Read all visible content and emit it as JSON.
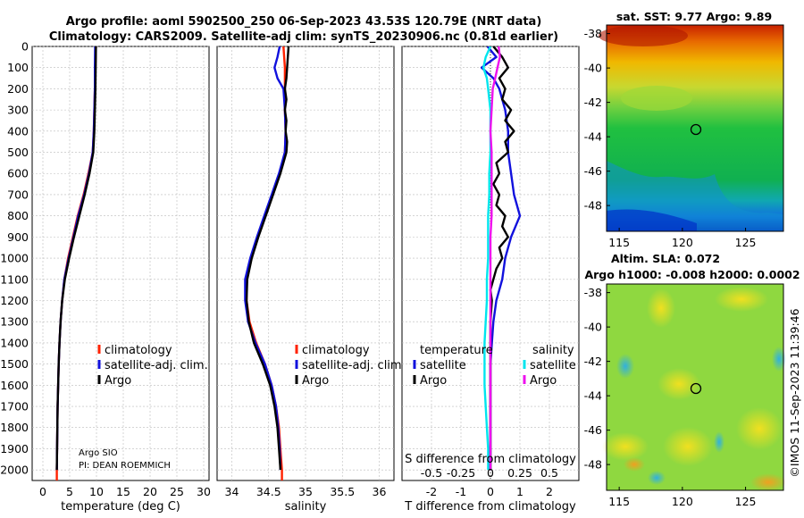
{
  "titles": {
    "line1": "Argo profile: aoml 5902500_250 06-Sep-2023 43.53S 120.79E (NRT data)",
    "line2": "Climatology: CARS2009. Satellite-adj clim: synTS_20230906.nc (0.81d earlier)"
  },
  "credits": {
    "line1": "Argo SIO",
    "line2": "PI: DEAN ROEMMICH"
  },
  "timestamp": "©IMOS 11-Sep-2023 11:39:46",
  "colors": {
    "climatology": "#ff2200",
    "satellite": "#1111dd",
    "argo": "#000000",
    "temp_sat": "#00e5ee",
    "sal_argo": "#ee11ee"
  },
  "chart_data": [
    {
      "id": "temperature",
      "type": "line",
      "xlabel": "temperature (deg C)",
      "ylabel": "",
      "xlim": [
        -2,
        31
      ],
      "ylim": [
        2050,
        0
      ],
      "xticks": [
        0,
        5,
        10,
        15,
        20,
        25,
        30
      ],
      "yticks": [
        0,
        100,
        200,
        300,
        400,
        500,
        600,
        700,
        800,
        900,
        1000,
        1100,
        1200,
        1300,
        1400,
        1500,
        1600,
        1700,
        1800,
        1900,
        2000
      ],
      "legend": [
        "climatology",
        "satellite-adj. clim.",
        "Argo"
      ],
      "series": [
        {
          "name": "climatology",
          "color": "#ff2200",
          "depth": [
            0,
            100,
            200,
            300,
            400,
            500,
            600,
            700,
            800,
            900,
            1000,
            1100,
            1200,
            1300,
            1400,
            1500,
            1600,
            1700,
            1800,
            1900,
            2000,
            2050
          ],
          "values": [
            9.9,
            9.8,
            9.7,
            9.6,
            9.5,
            9.3,
            8.5,
            7.6,
            6.5,
            5.6,
            4.7,
            4.0,
            3.6,
            3.3,
            3.1,
            2.95,
            2.85,
            2.75,
            2.7,
            2.65,
            2.6,
            2.6
          ]
        },
        {
          "name": "satellite-adj. clim.",
          "color": "#1111dd",
          "depth": [
            0,
            100,
            200,
            300,
            400,
            500,
            600,
            700,
            800,
            900,
            1000,
            1100,
            1200,
            1300,
            1400,
            1500,
            1600,
            1700,
            1800,
            1900,
            2000
          ],
          "values": [
            9.75,
            9.7,
            9.7,
            9.6,
            9.5,
            9.3,
            8.6,
            7.7,
            6.6,
            5.7,
            4.8,
            4.0,
            3.6,
            3.3,
            3.1,
            2.95,
            2.85,
            2.75,
            2.7,
            2.65,
            2.6
          ]
        },
        {
          "name": "Argo",
          "color": "#000000",
          "depth": [
            0,
            100,
            200,
            300,
            400,
            500,
            600,
            700,
            800,
            900,
            1000,
            1100,
            1200,
            1300,
            1400,
            1500,
            1600,
            1700,
            1800,
            1900,
            2000
          ],
          "values": [
            9.9,
            9.85,
            9.8,
            9.7,
            9.6,
            9.4,
            8.7,
            7.8,
            6.8,
            5.8,
            4.9,
            4.1,
            3.6,
            3.3,
            3.1,
            2.95,
            2.85,
            2.75,
            2.7,
            2.65,
            2.6
          ]
        }
      ]
    },
    {
      "id": "salinity",
      "type": "line",
      "xlabel": "salinity",
      "xlim": [
        33.8,
        36.2
      ],
      "ylim": [
        2050,
        0
      ],
      "xticks": [
        34,
        34.5,
        35,
        35.5,
        36
      ],
      "legend": [
        "climatology",
        "satellite-adj. clim.",
        "Argo"
      ],
      "series": [
        {
          "name": "climatology",
          "color": "#ff2200",
          "depth": [
            0,
            100,
            200,
            300,
            400,
            500,
            600,
            700,
            800,
            900,
            1000,
            1100,
            1200,
            1300,
            1400,
            1500,
            1600,
            1700,
            1800,
            1900,
            2000,
            2050
          ],
          "values": [
            34.7,
            34.72,
            34.72,
            34.72,
            34.73,
            34.72,
            34.65,
            34.55,
            34.45,
            34.35,
            34.26,
            34.2,
            34.2,
            34.24,
            34.33,
            34.45,
            34.54,
            34.6,
            34.64,
            34.66,
            34.68,
            34.68
          ]
        },
        {
          "name": "satellite-adj. clim.",
          "color": "#1111dd",
          "depth": [
            0,
            50,
            100,
            150,
            200,
            300,
            400,
            500,
            600,
            700,
            800,
            900,
            1000,
            1100,
            1200,
            1300,
            1400,
            1500,
            1600,
            1700,
            1800,
            1900,
            2000
          ],
          "values": [
            34.65,
            34.62,
            34.58,
            34.62,
            34.7,
            34.72,
            34.73,
            34.72,
            34.64,
            34.54,
            34.44,
            34.34,
            34.25,
            34.18,
            34.18,
            34.22,
            34.32,
            34.45,
            34.54,
            34.6,
            34.63,
            34.65,
            34.66
          ]
        },
        {
          "name": "Argo",
          "color": "#000000",
          "depth": [
            0,
            50,
            100,
            150,
            200,
            250,
            300,
            350,
            400,
            450,
            500,
            600,
            700,
            800,
            900,
            1000,
            1100,
            1200,
            1300,
            1400,
            1500,
            1600,
            1700,
            1800,
            1900,
            2000
          ],
          "values": [
            34.77,
            34.76,
            34.75,
            34.74,
            34.72,
            34.74,
            34.72,
            34.74,
            34.73,
            34.75,
            34.74,
            34.66,
            34.56,
            34.46,
            34.36,
            34.27,
            34.21,
            34.2,
            34.23,
            34.3,
            34.42,
            34.52,
            34.58,
            34.62,
            34.64,
            34.66
          ]
        }
      ]
    },
    {
      "id": "difference",
      "type": "line",
      "xlabel": "T difference from climatology",
      "top_axis_label": "S difference from climatology",
      "xlim": [
        -3,
        3
      ],
      "ylim": [
        2050,
        0
      ],
      "xticks": [
        -2,
        -1,
        0,
        1,
        2
      ],
      "top_ticks": [
        "-0.5",
        "-0.25",
        "0",
        "0.25",
        "0.5"
      ],
      "top_tick_values": [
        -0.5,
        -0.25,
        0,
        0.25,
        0.5
      ],
      "legend_left": {
        "title": "temperature",
        "items": [
          "satellite",
          "Argo"
        ]
      },
      "legend_right": {
        "title": "salinity",
        "items": [
          "satellite",
          "Argo"
        ]
      },
      "series": [
        {
          "name": "temperature satellite",
          "color": "#1111dd",
          "depth": [
            0,
            50,
            100,
            150,
            200,
            300,
            400,
            500,
            600,
            700,
            800,
            900,
            1000,
            1100,
            1200,
            1300,
            1400,
            1500,
            1600,
            1700,
            1800,
            1900,
            2000
          ],
          "values": [
            -0.1,
            0.2,
            -0.3,
            0.1,
            0.3,
            0.5,
            0.6,
            0.6,
            0.7,
            0.8,
            1.0,
            0.7,
            0.5,
            0.4,
            0.2,
            0.1,
            0.05,
            0.0,
            0.0,
            0.0,
            0.0,
            0.0,
            0.0
          ]
        },
        {
          "name": "temperature Argo",
          "color": "#000000",
          "depth": [
            0,
            50,
            100,
            150,
            200,
            250,
            300,
            350,
            400,
            450,
            500,
            550,
            600,
            650,
            700,
            750,
            800,
            850,
            900,
            950,
            1000,
            1050,
            1100,
            1150,
            1200,
            1300,
            1400,
            1500,
            1600,
            1700,
            1800,
            1900,
            2000
          ],
          "values": [
            0.1,
            0.4,
            0.6,
            0.3,
            0.5,
            0.4,
            0.7,
            0.5,
            0.8,
            0.5,
            0.6,
            0.2,
            0.3,
            0.1,
            0.3,
            0.2,
            0.5,
            0.4,
            0.6,
            0.3,
            0.4,
            0.2,
            0.1,
            0.0,
            0.05,
            0.0,
            0.0,
            0.0,
            0.0,
            0.0,
            0.0,
            0.0,
            0.0
          ]
        },
        {
          "name": "salinity satellite",
          "color": "#00e5ee",
          "depth": [
            0,
            50,
            100,
            150,
            200,
            300,
            400,
            500,
            600,
            700,
            800,
            900,
            1000,
            1100,
            1200,
            1300,
            1400,
            1500,
            1600,
            1700,
            1800,
            1900,
            2000
          ],
          "values": [
            0.0,
            -0.04,
            -0.06,
            -0.03,
            -0.02,
            0.0,
            0.0,
            0.0,
            -0.01,
            -0.01,
            -0.02,
            -0.02,
            -0.02,
            -0.03,
            -0.03,
            -0.04,
            -0.05,
            -0.05,
            -0.05,
            -0.04,
            -0.03,
            -0.02,
            -0.02
          ]
        },
        {
          "name": "salinity Argo",
          "color": "#ee11ee",
          "depth": [
            0,
            50,
            100,
            150,
            200,
            300,
            400,
            500,
            600,
            700,
            800,
            900,
            1000,
            1100,
            1200,
            1300,
            1400,
            1500,
            1600,
            1700,
            1800,
            1900,
            2000
          ],
          "values": [
            0.07,
            0.08,
            0.06,
            0.04,
            0.02,
            0.01,
            0.0,
            0.01,
            0.01,
            0.01,
            0.01,
            0.0,
            0.0,
            0.0,
            0.0,
            0.0,
            0.0,
            0.0,
            0.0,
            0.0,
            0.0,
            0.0,
            0.0
          ]
        }
      ]
    },
    {
      "id": "sst_map",
      "type": "heatmap",
      "title": "sat. SST: 9.77 Argo: 9.89",
      "xlim": [
        114,
        128
      ],
      "ylim": [
        -49.5,
        -37.5
      ],
      "xticks": [
        115,
        120,
        125
      ],
      "yticks": [
        -38,
        -40,
        -42,
        -44,
        -46,
        -48
      ],
      "marker": {
        "lon": 120.79,
        "lat": -43.53
      }
    },
    {
      "id": "sla_map",
      "type": "heatmap",
      "title_line1": "Altim. SLA: 0.072",
      "title_line2": "Argo h1000: -0.008 h2000: 0.0002",
      "xlim": [
        114,
        128
      ],
      "ylim": [
        -49.5,
        -37.5
      ],
      "xticks": [
        115,
        120,
        125
      ],
      "yticks": [
        -38,
        -40,
        -42,
        -44,
        -46,
        -48
      ],
      "marker": {
        "lon": 120.79,
        "lat": -43.53
      }
    }
  ]
}
